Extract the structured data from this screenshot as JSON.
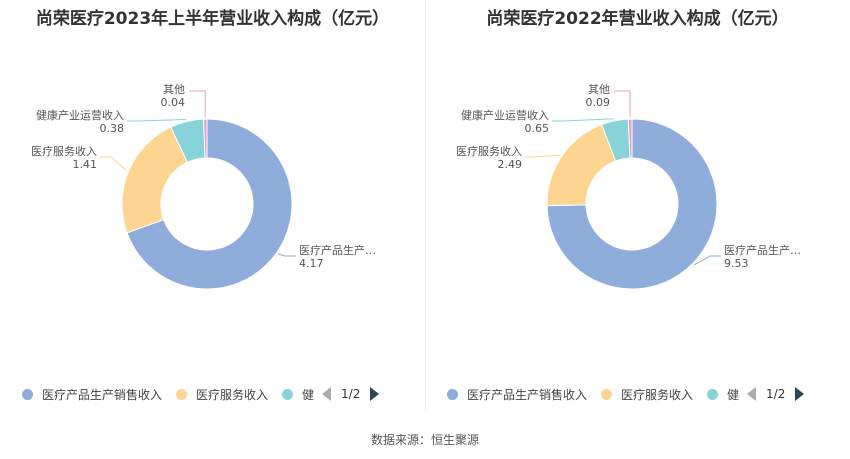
{
  "colors": {
    "series": [
      "#8eaddb",
      "#fdd590",
      "#87d3d9",
      "#e2a1c4"
    ],
    "leader": [
      "#8eaddb",
      "#fdd590",
      "#87d3d9",
      "#e2a1c4"
    ]
  },
  "chart_data": [
    {
      "type": "pie",
      "title": "尚荣医疗2023年上半年营业收入构成（亿元）",
      "categories": [
        "医疗产品生产销售收入",
        "医疗服务收入",
        "健康产业运营收入",
        "其他"
      ],
      "display_labels": [
        "医疗产品生产…",
        "医疗服务收入",
        "健康产业运营收入",
        "其他"
      ],
      "value_labels": [
        "4.17",
        "1.41",
        "0.38",
        "0.04"
      ],
      "values": [
        4.17,
        1.41,
        0.38,
        0.04
      ],
      "legend": {
        "items": [
          "医疗产品生产销售收入",
          "医疗服务收入",
          "健"
        ],
        "page": "1/2"
      }
    },
    {
      "type": "pie",
      "title": "尚荣医疗2022年营业收入构成（亿元）",
      "categories": [
        "医疗产品生产销售收入",
        "医疗服务收入",
        "健康产业运营收入",
        "其他"
      ],
      "display_labels": [
        "医疗产品生产…",
        "医疗服务收入",
        "健康产业运营收入",
        "其他"
      ],
      "value_labels": [
        "9.53",
        "2.49",
        "0.65",
        "0.09"
      ],
      "values": [
        9.53,
        2.49,
        0.65,
        0.09
      ],
      "legend": {
        "items": [
          "医疗产品生产销售收入",
          "医疗服务收入",
          "健"
        ],
        "page": "1/2"
      }
    }
  ],
  "footer": {
    "source": "数据来源：恒生聚源"
  }
}
